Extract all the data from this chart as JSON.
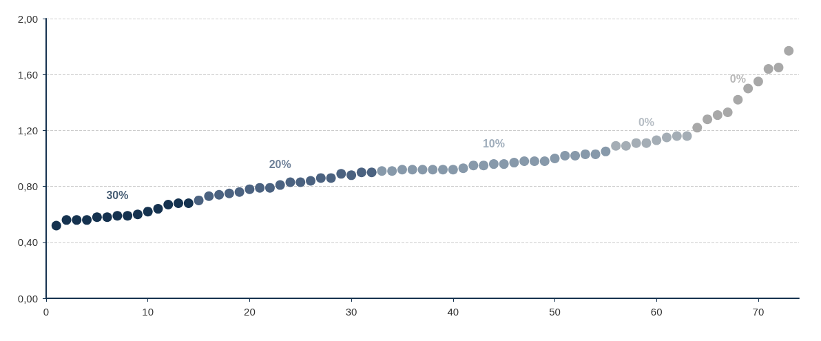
{
  "chart_data": {
    "type": "scatter",
    "marker": "circle",
    "grid": "y",
    "xlim": [
      0,
      74
    ],
    "xticks": [
      0,
      10,
      20,
      30,
      40,
      50,
      60,
      70
    ],
    "ylim": [
      0,
      2
    ],
    "yticks": [
      {
        "value": 0,
        "label": "0,00"
      },
      {
        "value": 0.4,
        "label": "0,40"
      },
      {
        "value": 0.8,
        "label": "0,80"
      },
      {
        "value": 1.2,
        "label": "1,20"
      },
      {
        "value": 1.6,
        "label": "1,60"
      },
      {
        "value": 2,
        "label": "2,00"
      }
    ],
    "series": [
      {
        "color": "#15324f",
        "x": [
          1,
          2,
          3,
          4,
          5,
          6,
          7,
          8,
          9,
          10,
          11,
          12,
          13,
          14
        ],
        "values": [
          0.52,
          0.56,
          0.56,
          0.56,
          0.58,
          0.58,
          0.59,
          0.59,
          0.6,
          0.62,
          0.64,
          0.67,
          0.68,
          0.68
        ]
      },
      {
        "color": "#4b6280",
        "x": [
          15,
          16,
          17,
          18,
          19,
          20,
          21,
          22,
          23,
          24,
          25,
          26,
          27,
          28,
          29,
          30,
          31,
          32
        ],
        "values": [
          0.7,
          0.73,
          0.74,
          0.75,
          0.76,
          0.78,
          0.79,
          0.79,
          0.81,
          0.83,
          0.83,
          0.84,
          0.86,
          0.86,
          0.89,
          0.88,
          0.9,
          0.9
        ]
      },
      {
        "color": "#8799aa",
        "x": [
          33,
          34,
          35,
          36,
          37,
          38,
          39,
          40,
          41,
          42,
          43,
          44,
          45,
          46,
          47,
          48,
          49,
          50,
          51,
          52,
          53,
          54,
          55
        ],
        "values": [
          0.91,
          0.91,
          0.92,
          0.92,
          0.92,
          0.92,
          0.92,
          0.92,
          0.93,
          0.95,
          0.95,
          0.96,
          0.96,
          0.97,
          0.98,
          0.98,
          0.98,
          1.0,
          1.02,
          1.02,
          1.03,
          1.03,
          1.05
        ]
      },
      {
        "color": "#a4adb5",
        "x": [
          56,
          57,
          58,
          59,
          60,
          61,
          62,
          63
        ],
        "values": [
          1.09,
          1.09,
          1.11,
          1.11,
          1.13,
          1.15,
          1.16,
          1.16
        ]
      },
      {
        "color": "#a8a8a8",
        "x": [
          64,
          65,
          66,
          67,
          68,
          69,
          70,
          71,
          72,
          73
        ],
        "values": [
          1.22,
          1.28,
          1.31,
          1.33,
          1.42,
          1.5,
          1.55,
          1.64,
          1.65,
          1.77
        ]
      }
    ],
    "annotations": [
      "30%",
      "20%",
      "10%",
      "0%",
      "0%"
    ]
  }
}
